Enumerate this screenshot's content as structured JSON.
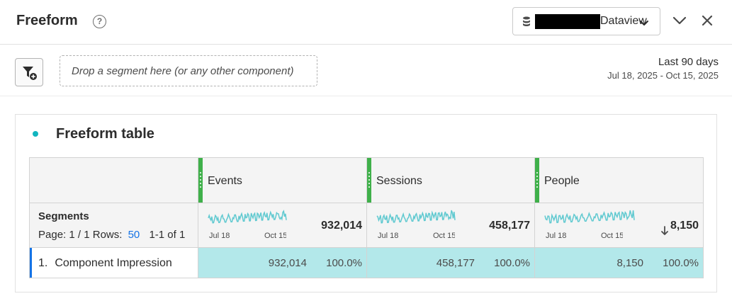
{
  "header": {
    "title": "Freeform",
    "help_glyph": "?",
    "dataview_label": "Dataview",
    "icons": [
      "database-icon",
      "chevron-down-icon",
      "collapse-icon",
      "close-icon"
    ]
  },
  "toolbar": {
    "dropzone_text": "Drop a segment here (or any other component)",
    "date_label": "Last 90 days",
    "date_range": "Jul 18, 2025 - Oct 15, 2025"
  },
  "panel": {
    "title": "Freeform table",
    "accent_color": "#12b5bf"
  },
  "table": {
    "dimension_label": "Segments",
    "pager": {
      "page": "Page: 1 / 1",
      "rows_label": "Rows:",
      "rows_value": "50",
      "range": "1-1 of 1"
    },
    "columns": [
      {
        "name": "Events",
        "total": "932,014",
        "spark_start": "Jul 18",
        "spark_end": "Oct 15"
      },
      {
        "name": "Sessions",
        "total": "458,177",
        "spark_start": "Jul 18",
        "spark_end": "Oct 15"
      },
      {
        "name": "People",
        "total": "8,150",
        "spark_start": "Jul 18",
        "spark_end": "Oct 15",
        "sorted": "descending"
      }
    ],
    "rows": [
      {
        "index": "1.",
        "label": "Component Impression",
        "cells": [
          {
            "value": "932,014",
            "pct": "100.0%"
          },
          {
            "value": "458,177",
            "pct": "100.0%"
          },
          {
            "value": "8,150",
            "pct": "100.0%"
          }
        ]
      }
    ],
    "colors": {
      "metric_bar": "#3fb04a",
      "cell_fill": "#b3e8ea",
      "sparkline": "#5fc9d0",
      "row_accent": "#1473e6"
    }
  }
}
